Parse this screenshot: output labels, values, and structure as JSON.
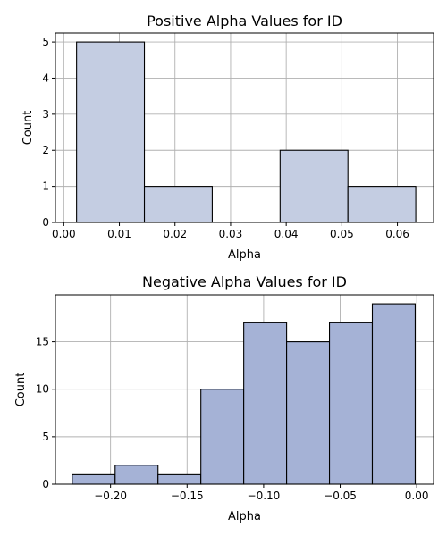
{
  "chart_data": [
    {
      "type": "bar",
      "title": "Positive Alpha Values for ID",
      "xlabel": "Alpha",
      "ylabel": "Count",
      "xlim": [
        -0.0015,
        0.0665
      ],
      "ylim": [
        0,
        5.25
      ],
      "xticks": [
        0.0,
        0.01,
        0.02,
        0.03,
        0.04,
        0.05,
        0.06
      ],
      "xtick_labels": [
        "0.00",
        "0.01",
        "0.02",
        "0.03",
        "0.04",
        "0.05",
        "0.06"
      ],
      "yticks": [
        0,
        1,
        2,
        3,
        4,
        5
      ],
      "ytick_labels": [
        "0",
        "1",
        "2",
        "3",
        "4",
        "5"
      ],
      "bin_edges": [
        0.0023,
        0.0145,
        0.0267,
        0.0389,
        0.0511,
        0.0633
      ],
      "values": [
        5,
        1,
        0,
        2,
        1
      ],
      "color": "#c4cde2",
      "grid": true
    },
    {
      "type": "bar",
      "title": "Negative Alpha Values for ID",
      "xlabel": "Alpha",
      "ylabel": "Count",
      "xlim": [
        -0.236,
        0.011
      ],
      "ylim": [
        0,
        19.95
      ],
      "xticks": [
        -0.2,
        -0.15,
        -0.1,
        -0.05,
        0.0
      ],
      "xtick_labels": [
        "−0.20",
        "−0.15",
        "−0.10",
        "−0.05",
        "0.00"
      ],
      "yticks": [
        0,
        5,
        10,
        15
      ],
      "ytick_labels": [
        "0",
        "5",
        "10",
        "15"
      ],
      "bin_edges": [
        -0.225,
        -0.197,
        -0.169,
        -0.141,
        -0.113,
        -0.085,
        -0.057,
        -0.029,
        -0.001
      ],
      "values": [
        1,
        2,
        1,
        10,
        17,
        15,
        17,
        19
      ],
      "color": "#a5b2d6",
      "grid": true
    }
  ]
}
